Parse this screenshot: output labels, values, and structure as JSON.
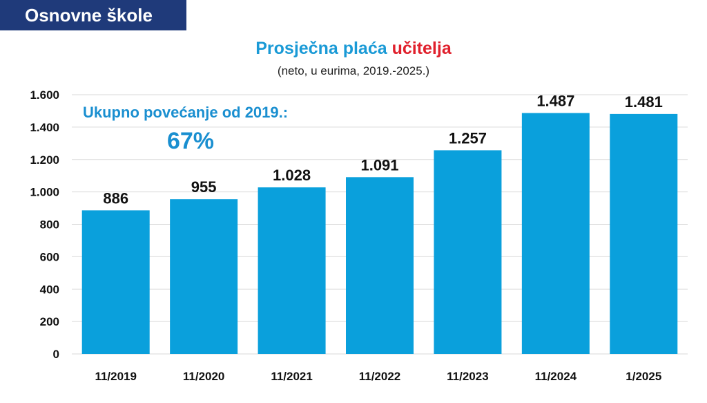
{
  "header": {
    "banner": "Osnovne škole"
  },
  "colors": {
    "banner_bg": "#1f3a7a",
    "title_blue": "#1a9ad6",
    "title_red": "#e0202c",
    "bar": "#0aa0dc",
    "annotation": "#1a8fd0"
  },
  "chart_data": {
    "type": "bar",
    "title_part1": "Prosječna plaća ",
    "title_part2": "učitelja",
    "subtitle": "(neto, u eurima, 2019.-2025.)",
    "xlabel": "",
    "ylabel": "",
    "ylim": [
      0,
      1600
    ],
    "yticks": [
      0,
      200,
      400,
      600,
      800,
      1000,
      1200,
      1400,
      1600
    ],
    "ytick_labels": [
      "0",
      "200",
      "400",
      "600",
      "800",
      "1.000",
      "1.200",
      "1.400",
      "1.600"
    ],
    "grid": true,
    "categories": [
      "11/2019",
      "11/2020",
      "11/2021",
      "11/2022",
      "11/2023",
      "11/2024",
      "1/2025"
    ],
    "values": [
      886,
      955,
      1028,
      1091,
      1257,
      1487,
      1481
    ],
    "value_labels": [
      "886",
      "955",
      "1.028",
      "1.091",
      "1.257",
      "1.487",
      "1.481"
    ],
    "annotation_text": "Ukupno povećanje od 2019.:",
    "annotation_value": "67%"
  }
}
